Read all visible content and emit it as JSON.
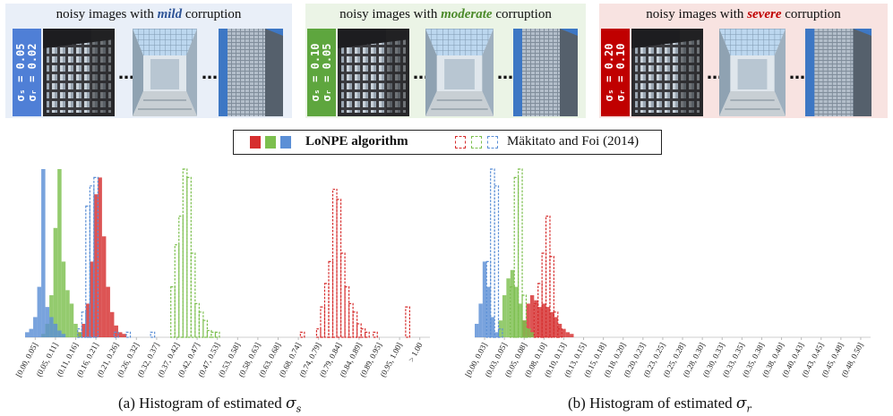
{
  "panels": [
    {
      "prefix": "noisy images with ",
      "level": "mild",
      "suffix": " corruption",
      "sigma_s": "σₛ = 0.05",
      "sigma_r": "σᵣ = 0.02",
      "color": "#4472c4",
      "bg": "#e9eff8"
    },
    {
      "prefix": "noisy images with ",
      "level": "moderate",
      "suffix": " corruption",
      "sigma_s": "σₛ = 0.10",
      "sigma_r": "σᵣ = 0.05",
      "color": "#5ea63e",
      "bg": "#ebf4e6"
    },
    {
      "prefix": "noisy images with ",
      "level": "severe",
      "suffix": " corruption",
      "sigma_s": "σₛ = 0.20",
      "sigma_r": "σᵣ = 0.10",
      "color": "#c00000",
      "bg": "#f8e3e1"
    }
  ],
  "ellipsis": "…",
  "legend": {
    "lonpe": "LoNPE algorithm",
    "makitalo": "Mäkitato and Foi (2014)"
  },
  "captions": {
    "a_prefix": "(a) Histogram of estimated ",
    "a_symbol": "σs",
    "b_prefix": "(b) Histogram of estimated ",
    "b_symbol": "σr"
  },
  "colors": {
    "red": "#d62e2e",
    "green": "#7cbf4e",
    "blue": "#5b8fd6"
  },
  "chart_data": [
    {
      "type": "histogram",
      "title": "(a) Histogram of estimated σs",
      "categories": [
        "[0.00, 0.05]",
        "(0.05, 0.11]",
        "(0.11, 0.16]",
        "(0.16, 0.21]",
        "(0.21, 0.26]",
        "(0.26, 0.32]",
        "(0.32, 0.37]",
        "(0.37, 0.42]",
        "(0.42, 0.47]",
        "(0.47, 0.53]",
        "(0.53, 0.58]",
        "(0.58, 0.63]",
        "(0.63, 0.68]",
        "(0.68, 0.74]",
        "(0.74, 0.79]",
        "(0.79, 0.84]",
        "(0.84, 0.89]",
        "(0.89, 0.95]",
        "(0.95, 1.00]",
        "> 1.00"
      ],
      "xlim": [
        0,
        1.06
      ],
      "ylim": [
        0,
        100
      ],
      "bin_width": 0.0106,
      "series": [
        {
          "name": "LoNPE (mild)",
          "color": "blue",
          "style": "solid",
          "x": [
            0.0,
            0.0106,
            0.0212,
            0.0318,
            0.0424,
            0.053,
            0.0636,
            0.0742,
            0.0848,
            0.0954
          ],
          "values": [
            3,
            5,
            12,
            30,
            100,
            18,
            12,
            8,
            4,
            2
          ]
        },
        {
          "name": "LoNPE (moderate)",
          "color": "green",
          "style": "solid",
          "x": [
            0.0424,
            0.053,
            0.0636,
            0.0742,
            0.0848,
            0.0954,
            0.106,
            0.1166,
            0.1272,
            0.1378
          ],
          "values": [
            2,
            8,
            25,
            65,
            100,
            45,
            28,
            20,
            8,
            3
          ]
        },
        {
          "name": "LoNPE (severe)",
          "color": "red",
          "style": "solid",
          "x": [
            0.1378,
            0.1484,
            0.159,
            0.1696,
            0.1802,
            0.1908,
            0.2014,
            0.212,
            0.2226,
            0.2332,
            0.2438,
            0.2544
          ],
          "values": [
            3,
            8,
            20,
            45,
            85,
            95,
            60,
            30,
            15,
            7,
            3,
            2
          ]
        },
        {
          "name": "Mäkitato (mild)",
          "color": "blue",
          "style": "dashed",
          "x": [
            0.1378,
            0.1484,
            0.159,
            0.1696,
            0.1802,
            0.2332,
            0.265,
            0.3286
          ],
          "values": [
            5,
            15,
            78,
            90,
            95,
            3,
            3,
            3
          ]
        },
        {
          "name": "Mäkitato (moderate)",
          "color": "green",
          "style": "dashed",
          "x": [
            0.3816,
            0.3922,
            0.4028,
            0.4134,
            0.424,
            0.4346,
            0.4452,
            0.4558,
            0.4664,
            0.477,
            0.4876,
            0.4982
          ],
          "values": [
            30,
            55,
            72,
            100,
            95,
            50,
            20,
            15,
            10,
            4,
            3,
            3
          ]
        },
        {
          "name": "Mäkitato (severe)",
          "color": "red",
          "style": "dashed",
          "x": [
            0.7208,
            0.7632,
            0.7738,
            0.7844,
            0.795,
            0.8056,
            0.8162,
            0.8268,
            0.8374,
            0.848,
            0.8586,
            0.8692,
            0.8798,
            0.8904,
            0.9116,
            0.9964
          ],
          "values": [
            3,
            5,
            18,
            32,
            45,
            88,
            82,
            50,
            30,
            20,
            15,
            8,
            5,
            3,
            3,
            18
          ]
        }
      ]
    },
    {
      "type": "histogram",
      "title": "(b) Histogram of estimated σr",
      "categories": [
        "[0.00, 0.03]",
        "(0.03, 0.05]",
        "(0.05, 0.08]",
        "(0.08, 0.10]",
        "(0.10, 0.13]",
        "(0.13, 0.15]",
        "(0.15, 0.18]",
        "(0.18, 0.20]",
        "(0.20, 0.23]",
        "(0.23, 0.25]",
        "(0.25, 0.28]",
        "(0.28, 0.30]",
        "(0.30, 0.33]",
        "(0.33, 0.35]",
        "(0.35, 0.38]",
        "(0.38, 0.40]",
        "(0.40, 0.43]",
        "(0.43, 0.45]",
        "(0.45, 0.48]",
        "(0.48, 0.50]"
      ],
      "xlim": [
        0,
        0.5
      ],
      "ylim": [
        0,
        100
      ],
      "bin_width": 0.005,
      "series": [
        {
          "name": "LoNPE (mild)",
          "color": "blue",
          "style": "solid",
          "x": [
            0.0,
            0.005,
            0.01,
            0.015,
            0.02,
            0.025
          ],
          "values": [
            8,
            20,
            45,
            30,
            12,
            3
          ]
        },
        {
          "name": "LoNPE (moderate)",
          "color": "green",
          "style": "solid",
          "x": [
            0.03,
            0.035,
            0.04,
            0.045,
            0.05,
            0.055,
            0.06,
            0.065,
            0.07
          ],
          "values": [
            10,
            25,
            35,
            40,
            30,
            20,
            10,
            5,
            3
          ]
        },
        {
          "name": "LoNPE (severe)",
          "color": "red",
          "style": "solid",
          "x": [
            0.06,
            0.065,
            0.07,
            0.075,
            0.08,
            0.085,
            0.09,
            0.095,
            0.1,
            0.105,
            0.11,
            0.115,
            0.12
          ],
          "values": [
            10,
            20,
            25,
            22,
            18,
            20,
            18,
            15,
            12,
            8,
            5,
            3,
            2
          ]
        },
        {
          "name": "Mäkitato (mild)",
          "color": "blue",
          "style": "dashed",
          "x": [
            0.015,
            0.02,
            0.025,
            0.03
          ],
          "values": [
            45,
            100,
            90,
            5
          ]
        },
        {
          "name": "Mäkitato (moderate)",
          "color": "green",
          "style": "dashed",
          "x": [
            0.045,
            0.05,
            0.055,
            0.06,
            0.065
          ],
          "values": [
            30,
            95,
            100,
            25,
            5
          ]
        },
        {
          "name": "Mäkitato (severe)",
          "color": "red",
          "style": "dashed",
          "x": [
            0.075,
            0.08,
            0.085,
            0.09,
            0.095,
            0.1,
            0.105
          ],
          "values": [
            20,
            32,
            50,
            72,
            48,
            15,
            5
          ]
        }
      ]
    }
  ]
}
